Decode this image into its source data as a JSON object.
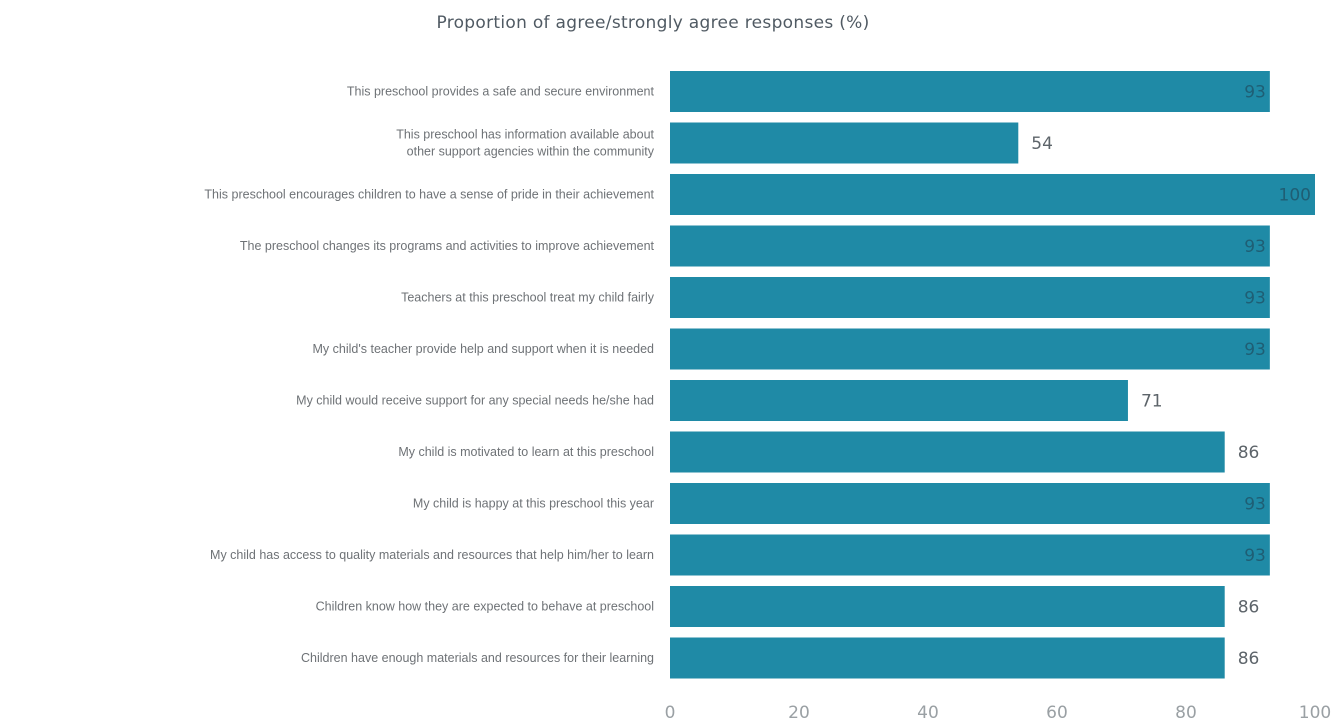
{
  "chart_data": {
    "type": "bar",
    "orientation": "horizontal",
    "title": "Proportion of agree/strongly agree responses (%)",
    "xlabel": "",
    "ylabel": "",
    "categories": [
      [
        "This preschool provides a safe and secure environment"
      ],
      [
        "This preschool has information available about",
        "other support agencies within the community"
      ],
      [
        "This preschool encourages children to have a sense of pride in their achievement"
      ],
      [
        "The preschool changes its programs and activities to improve achievement"
      ],
      [
        "Teachers at this preschool treat my child fairly"
      ],
      [
        "My child's teacher provide help and support when it is needed"
      ],
      [
        "My child would receive support for any special needs he/she had"
      ],
      [
        "My child is motivated to learn at this preschool"
      ],
      [
        "My child is happy at this preschool this year"
      ],
      [
        "My child has access to quality materials and resources that help him/her to learn"
      ],
      [
        "Children know how they are expected to behave at preschool"
      ],
      [
        "Children have enough materials and resources for their learning"
      ]
    ],
    "values": [
      93,
      54,
      100,
      93,
      93,
      93,
      71,
      86,
      93,
      93,
      86,
      86
    ],
    "xlim": [
      0,
      100
    ],
    "xticks": [
      0,
      20,
      40,
      60,
      80,
      100
    ],
    "bar_color": "#1f8aa6",
    "grid": false,
    "legend": "none"
  }
}
